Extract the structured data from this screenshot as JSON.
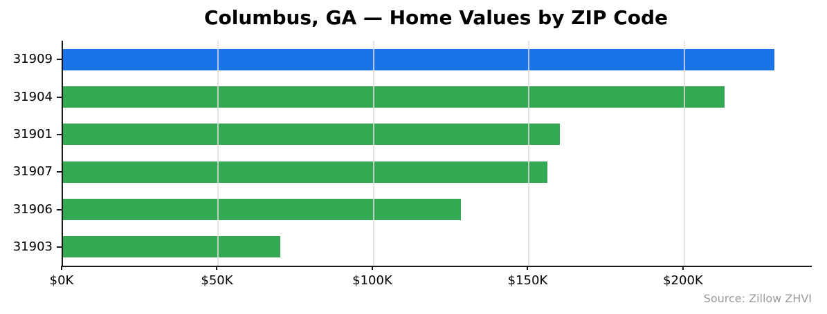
{
  "colors": {
    "bar_highlight": "#1a73e8",
    "bar_default": "#34a853",
    "grid": "#dcdcdc",
    "axis": "#1a1a1a",
    "title_text": "#000000",
    "source_text": "#9a9a9a"
  },
  "chart_data": {
    "type": "bar",
    "orientation": "horizontal",
    "title": "Columbus, GA — Home Values by ZIP Code",
    "categories": [
      "31909",
      "31904",
      "31901",
      "31907",
      "31906",
      "31903"
    ],
    "values": [
      229,
      213,
      160,
      156,
      128,
      70
    ],
    "value_unit": "thousand USD",
    "xlabel": "",
    "ylabel": "",
    "xlim": [
      0,
      241
    ],
    "xticks": [
      0,
      50,
      100,
      150,
      200
    ],
    "xtick_labels": [
      "$0K",
      "$50K",
      "$100K",
      "$150K",
      "$200K"
    ],
    "grid": "vertical-x",
    "legend": "none",
    "highlighted_category": "31909",
    "annotation": "Source: Zillow ZHVI"
  }
}
